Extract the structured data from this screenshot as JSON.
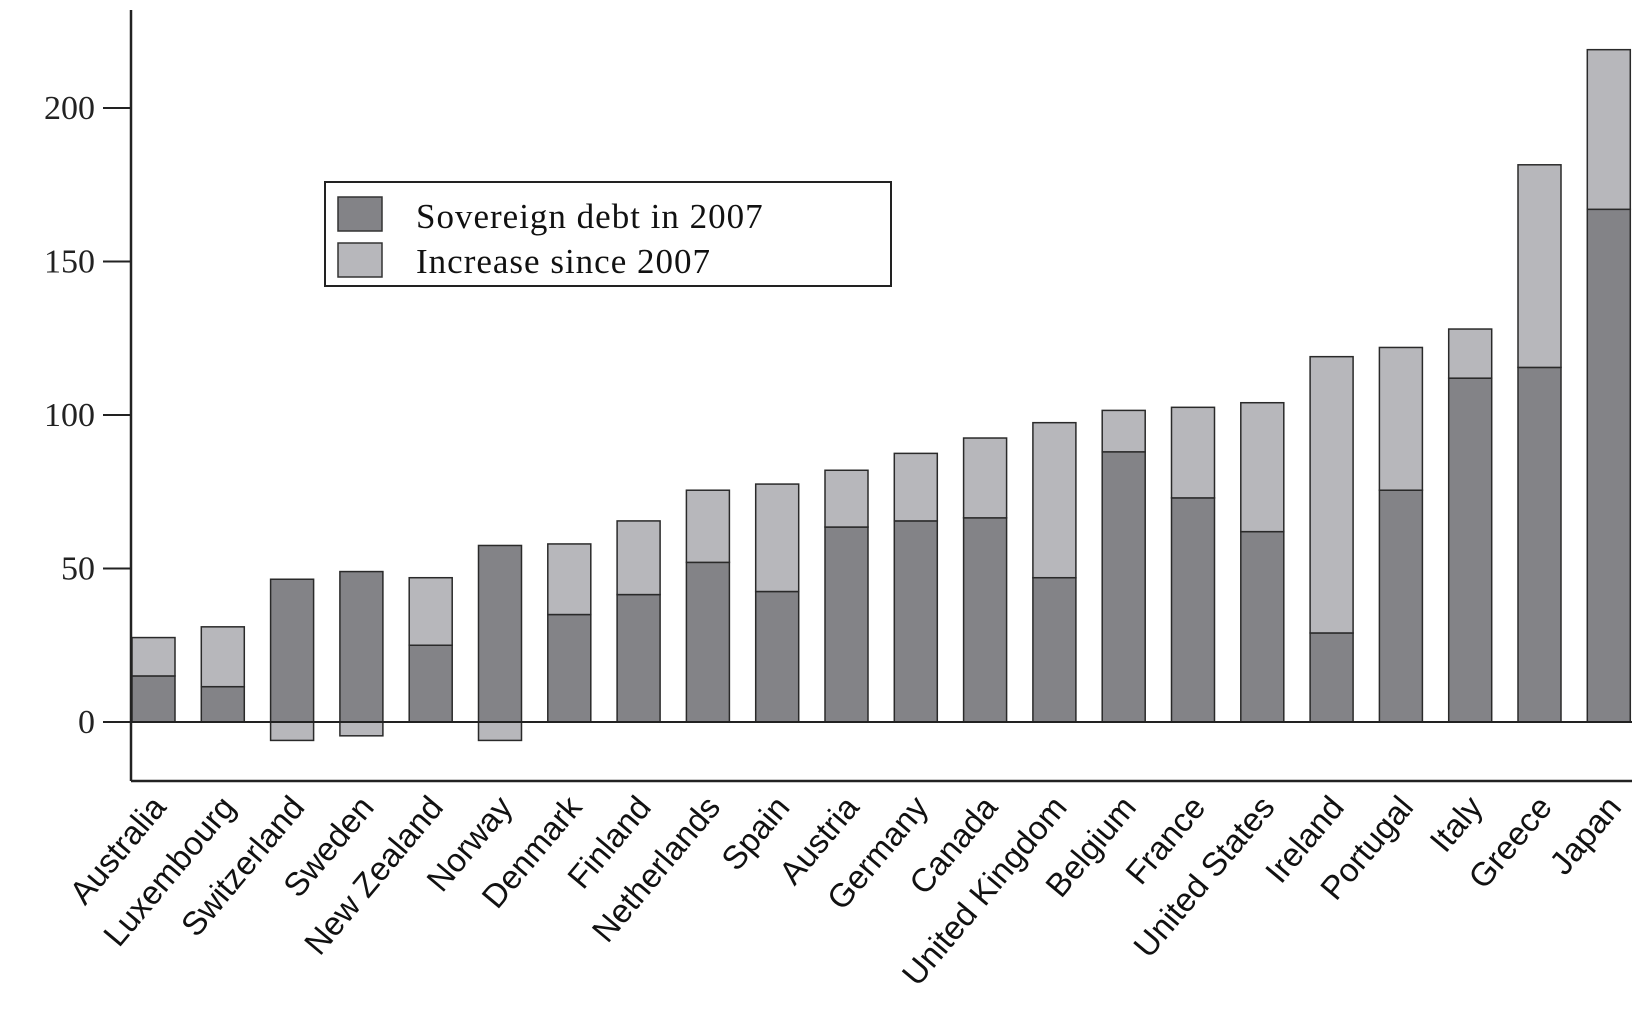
{
  "chart_data": {
    "type": "bar",
    "stacked": true,
    "categories": [
      "Australia",
      "Luxembourg",
      "Switzerland",
      "Sweden",
      "New Zealand",
      "Norway",
      "Denmark",
      "Finland",
      "Netherlands",
      "Spain",
      "Austria",
      "Germany",
      "Canada",
      "United Kingdom",
      "Belgium",
      "France",
      "United States",
      "Ireland",
      "Portugal",
      "Italy",
      "Greece",
      "Japan"
    ],
    "series": [
      {
        "name": "Sovereign debt in 2007",
        "color": "#838387",
        "values": [
          15,
          11.5,
          46.5,
          49,
          25,
          57.5,
          35,
          41.5,
          52,
          42.5,
          63.5,
          65.5,
          66.5,
          47,
          88,
          73,
          62,
          29,
          75.5,
          112,
          115.5,
          167
        ]
      },
      {
        "name": "Increase since 2007",
        "color": "#b7b7bb",
        "values": [
          12.5,
          19.5,
          -6,
          -4.5,
          22,
          -6,
          23,
          24,
          23.5,
          35,
          18.5,
          22,
          26,
          50.5,
          13.5,
          29.5,
          42,
          90,
          46.5,
          16,
          66,
          52
        ]
      }
    ],
    "yticks": [
      0,
      50,
      100,
      150,
      200
    ],
    "ylim": [
      -20,
      232
    ],
    "legend": "upper-left",
    "grid": false
  }
}
